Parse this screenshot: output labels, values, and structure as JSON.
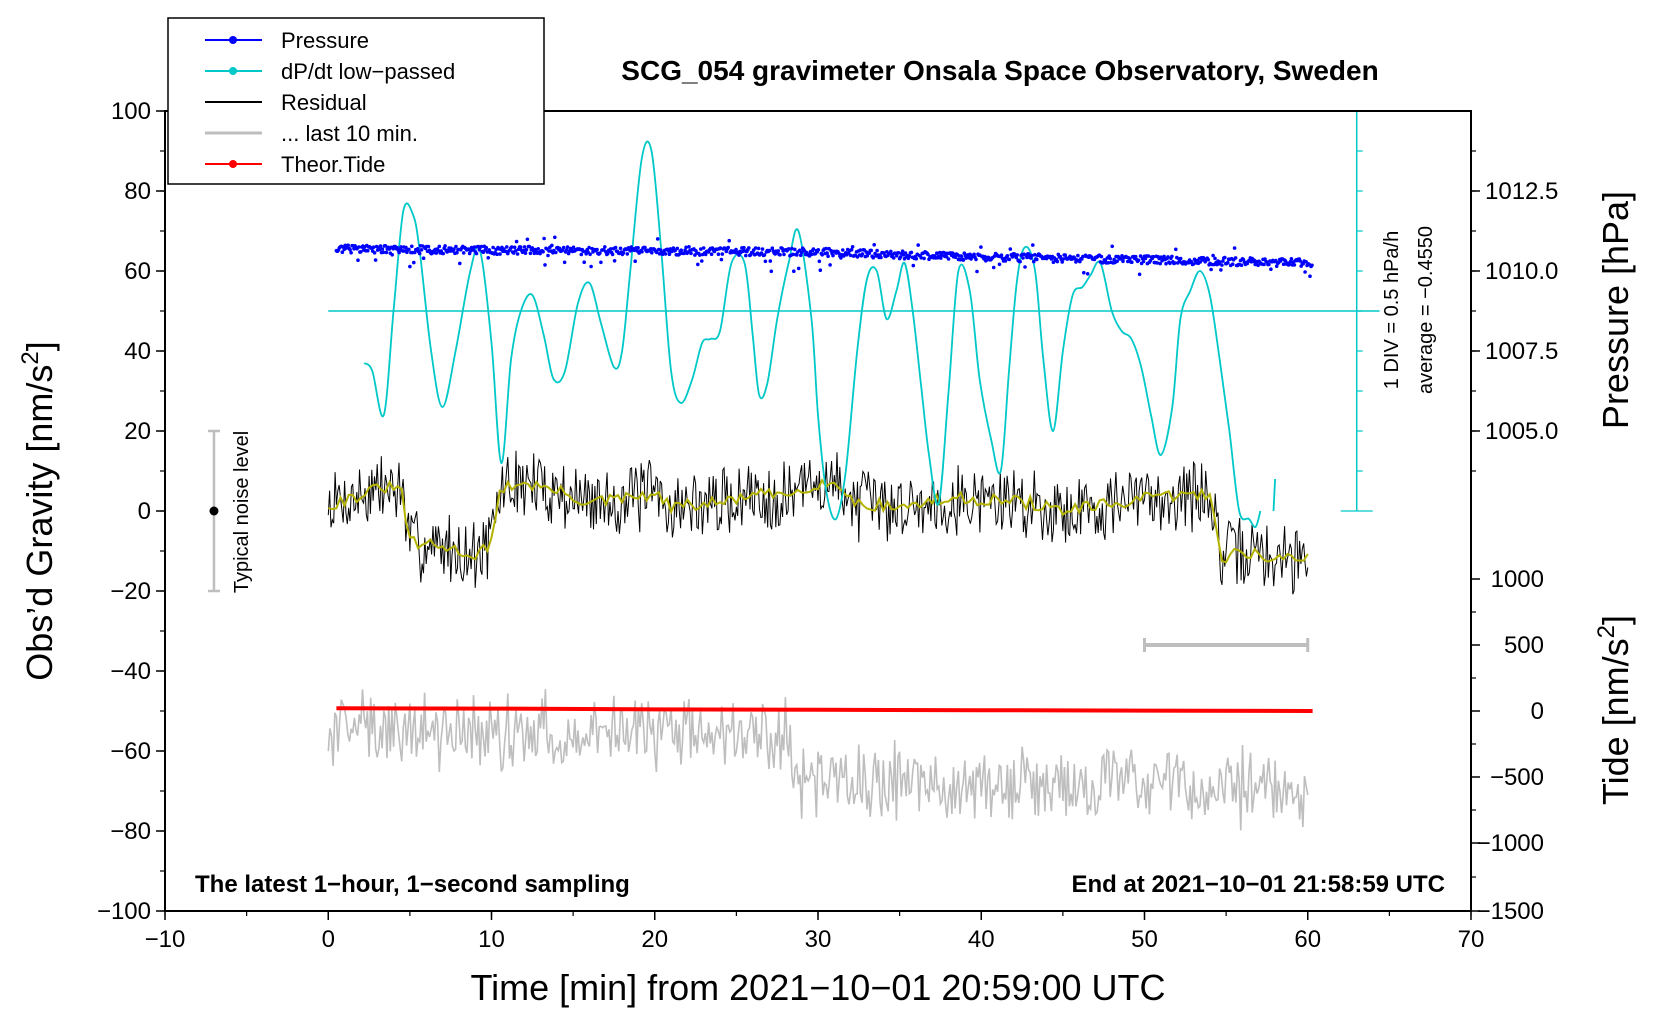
{
  "chart_data": {
    "type": "line",
    "title": "SCG_054 gravimeter Onsala Space Observatory, Sweden",
    "xlabel": "Time [min] from 2021−10−01 20:59:00 UTC",
    "ylabel_left_main": "Obs’d Gravity [nm/s",
    "ylabel_left_sup": "2",
    "ylabel_left_end": "]",
    "ylabel_right_pressure": "Pressure [hPa]",
    "ylabel_right_tide_main": "Tide [nm/s",
    "ylabel_right_tide_sup": "2",
    "ylabel_right_tide_end": "]",
    "xlim": [
      -10,
      70
    ],
    "ylim": [
      -100,
      100
    ],
    "x_ticks": [
      "−10",
      "0",
      "10",
      "20",
      "30",
      "40",
      "50",
      "60",
      "70"
    ],
    "x_tick_values": [
      -10,
      0,
      10,
      20,
      30,
      40,
      50,
      60,
      70
    ],
    "y_ticks": [
      "−100",
      "−80",
      "−60",
      "−40",
      "−20",
      "0",
      "20",
      "40",
      "60",
      "80",
      "100"
    ],
    "y_tick_values": [
      -100,
      -80,
      -60,
      -40,
      -20,
      0,
      20,
      40,
      60,
      80,
      100
    ],
    "pressure_axis": {
      "ticks": [
        "1012.5",
        "1010.0",
        "1007.5",
        "1005.0"
      ],
      "tick_values": [
        1012.5,
        1010.0,
        1007.5,
        1005.0
      ],
      "ref_gravity": [
        80,
        60,
        40,
        20
      ]
    },
    "tide_axis": {
      "ticks": [
        "1000",
        "500",
        "0",
        "−500",
        "−1000",
        "−1500"
      ],
      "tick_values": [
        1000,
        500,
        0,
        -500,
        -1000,
        -1500
      ],
      "ref_gravity": [
        -17,
        -33.5,
        -50,
        -66.5,
        -83,
        -100
      ]
    },
    "legend": {
      "position": "top-left",
      "entries": [
        {
          "label": "Pressure",
          "color": "#0000ff",
          "marker": true
        },
        {
          "label": "dP/dt low−passed",
          "color": "#00c8c8",
          "marker": true
        },
        {
          "label": "Residual",
          "color": "#000000",
          "marker": false
        },
        {
          "label": "... last 10 min.",
          "color": "#bebebe",
          "marker": false
        },
        {
          "label": "Theor.Tide",
          "color": "#ff0000",
          "marker": true
        }
      ]
    },
    "annotations": {
      "bottom_left": "The latest 1−hour, 1−second sampling",
      "bottom_right": "End at 2021−10−01 21:58:59 UTC",
      "noise_label": "Typical noise level",
      "dpdt_scale": "1 DIV = 0.5 hPa/h",
      "dpdt_average": "average = −0.4550"
    },
    "noise_bar": {
      "x": -7,
      "center": 0,
      "low": -20,
      "high": 20
    },
    "ten_min_bar": {
      "x_start": 50,
      "x_end": 60,
      "y": -33.5
    },
    "dpdt_scale_bar": {
      "x": 63,
      "y_low": 0,
      "y_high": 100,
      "baseline": 50
    },
    "colors": {
      "pressure": "#0000ff",
      "dpdt": "#00c8c8",
      "residual": "#000000",
      "residual_smooth": "#b4b400",
      "last10": "#bebebe",
      "tide": "#ff0000",
      "bar": "#bebebe"
    },
    "series": [
      {
        "name": "Pressure",
        "x": [
          0.5,
          10,
          20,
          30,
          40,
          50,
          60.3
        ],
        "y": [
          65.5,
          65.2,
          65.0,
          64.7,
          63.5,
          62.8,
          62.0
        ],
        "scatter_spread": 2.0
      },
      {
        "name": "dP/dt low−passed",
        "x": [
          2.2,
          2.7,
          3.4,
          4.0,
          4.6,
          5.2,
          5.6,
          6.3,
          7.0,
          7.8,
          8.7,
          9.3,
          10.0,
          10.6,
          11.2,
          11.8,
          12.5,
          13.2,
          13.8,
          14.5,
          15.3,
          16.0,
          16.7,
          17.5,
          18.0,
          18.5,
          19.2,
          19.8,
          20.4,
          21.0,
          21.6,
          22.3,
          22.9,
          23.4,
          24.0,
          24.7,
          25.5,
          26.0,
          26.4,
          26.9,
          27.5,
          28.2,
          28.8,
          29.6,
          30.0,
          30.5,
          31.1,
          31.7,
          32.4,
          33.0,
          33.6,
          34.2,
          34.8,
          35.3,
          35.8,
          36.3,
          36.8,
          37.4,
          38.0,
          38.6,
          39.3,
          39.9,
          40.6,
          41.2,
          41.7,
          42.2,
          42.7,
          43.3,
          43.8,
          44.4,
          45.0,
          45.6,
          46.2,
          46.7,
          47.3,
          48.0,
          48.6,
          49.2,
          49.8,
          50.4,
          51.0,
          51.7,
          52.2,
          52.8,
          53.4,
          54.0,
          54.6,
          55.2,
          55.8,
          56.4,
          56.8,
          57.1
        ],
        "y": [
          37,
          35,
          24,
          50,
          75,
          74,
          65,
          40,
          26,
          40,
          60,
          65,
          42,
          12,
          38,
          50,
          54,
          44,
          33,
          35,
          52,
          57,
          47,
          36,
          40,
          60,
          88,
          90,
          65,
          35,
          27,
          33,
          42,
          43,
          45,
          62,
          62,
          44,
          29,
          32,
          48,
          62,
          70,
          48,
          24,
          5,
          -2,
          10,
          40,
          58,
          60,
          48,
          55,
          62,
          50,
          32,
          14,
          2,
          30,
          60,
          55,
          33,
          18,
          10,
          35,
          58,
          66,
          60,
          38,
          20,
          40,
          54,
          56,
          59,
          62,
          50,
          45,
          43,
          36,
          24,
          14,
          26,
          48,
          55,
          60,
          54,
          38,
          20,
          0,
          -2,
          -4,
          0
        ]
      },
      {
        "name": "dP/dt low−passed (end segment)",
        "x": [
          57.9,
          58.0
        ],
        "y": [
          0,
          8
        ]
      },
      {
        "name": "Residual",
        "levels": [
          [
            0,
            1.5
          ],
          [
            2,
            4
          ],
          [
            3.5,
            6
          ],
          [
            4.5,
            5
          ],
          [
            5,
            -8
          ],
          [
            7,
            -9
          ],
          [
            9,
            -11
          ],
          [
            10,
            -8
          ],
          [
            10.6,
            6
          ],
          [
            12,
            7
          ],
          [
            14,
            5
          ],
          [
            16,
            2
          ],
          [
            18,
            3
          ],
          [
            20,
            4
          ],
          [
            21,
            1
          ],
          [
            24,
            2
          ],
          [
            26,
            4
          ],
          [
            28,
            4
          ],
          [
            30,
            7
          ],
          [
            31.6,
            6
          ],
          [
            32.2,
            2
          ],
          [
            35,
            1
          ],
          [
            38,
            3
          ],
          [
            40,
            3
          ],
          [
            43,
            2
          ],
          [
            45,
            0
          ],
          [
            47,
            1
          ],
          [
            50,
            3
          ],
          [
            52,
            4
          ],
          [
            54,
            4
          ],
          [
            54.8,
            -12
          ],
          [
            56,
            -10
          ],
          [
            58,
            -12
          ],
          [
            60,
            -12
          ]
        ],
        "noise_amplitude": 8
      },
      {
        "name": "... last 10 min.",
        "levels": [
          [
            0,
            -55
          ],
          [
            28,
            -55
          ],
          [
            29,
            -68
          ],
          [
            45,
            -68
          ],
          [
            60,
            -70
          ]
        ],
        "noise_amplitude": 8
      },
      {
        "name": "Theor.Tide",
        "x": [
          0.5,
          10,
          20,
          30,
          40,
          50,
          60.3
        ],
        "y": [
          -49.3,
          -49.4,
          -49.6,
          -49.7,
          -49.8,
          -49.9,
          -50.0
        ]
      }
    ]
  }
}
